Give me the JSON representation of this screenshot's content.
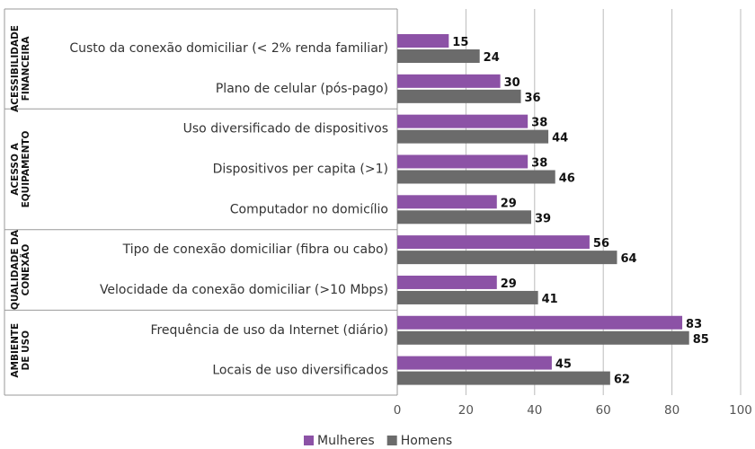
{
  "chart_data": {
    "type": "bar",
    "orientation": "horizontal",
    "groups": [
      {
        "label": [
          "ACESSIBILIDADE",
          "FINANCEIRA"
        ],
        "categories": [
          "Custo da conexão domiciliar (< 2% renda familiar)",
          "Plano de celular (pós-pago)"
        ]
      },
      {
        "label": [
          "ACESSO A",
          "EQUIPAMENTO"
        ],
        "categories": [
          "Uso diversificado de dispositivos",
          "Dispositivos per capita (>1)",
          "Computador no domicílio"
        ]
      },
      {
        "label": [
          "QUALIDADE DA",
          "CONEXÃO"
        ],
        "categories": [
          "Tipo de conexão domiciliar (fibra ou cabo)",
          "Velocidade da conexão domiciliar (>10 Mbps)"
        ]
      },
      {
        "label": [
          "AMBIENTE",
          "DE USO"
        ],
        "categories": [
          "Frequência de uso da Internet (diário)",
          "Locais de uso diversificados"
        ]
      }
    ],
    "series": [
      {
        "name": "Mulheres",
        "color": "#8c52a6",
        "values": [
          15,
          30,
          38,
          38,
          29,
          56,
          29,
          83,
          45
        ]
      },
      {
        "name": "Homens",
        "color": "#6b6b6b",
        "values": [
          24,
          36,
          44,
          46,
          39,
          64,
          41,
          85,
          62
        ]
      }
    ],
    "xlim": [
      0,
      100
    ],
    "xticks": [
      0,
      20,
      40,
      60,
      80,
      100
    ],
    "grid": true,
    "legend": "bottom"
  }
}
